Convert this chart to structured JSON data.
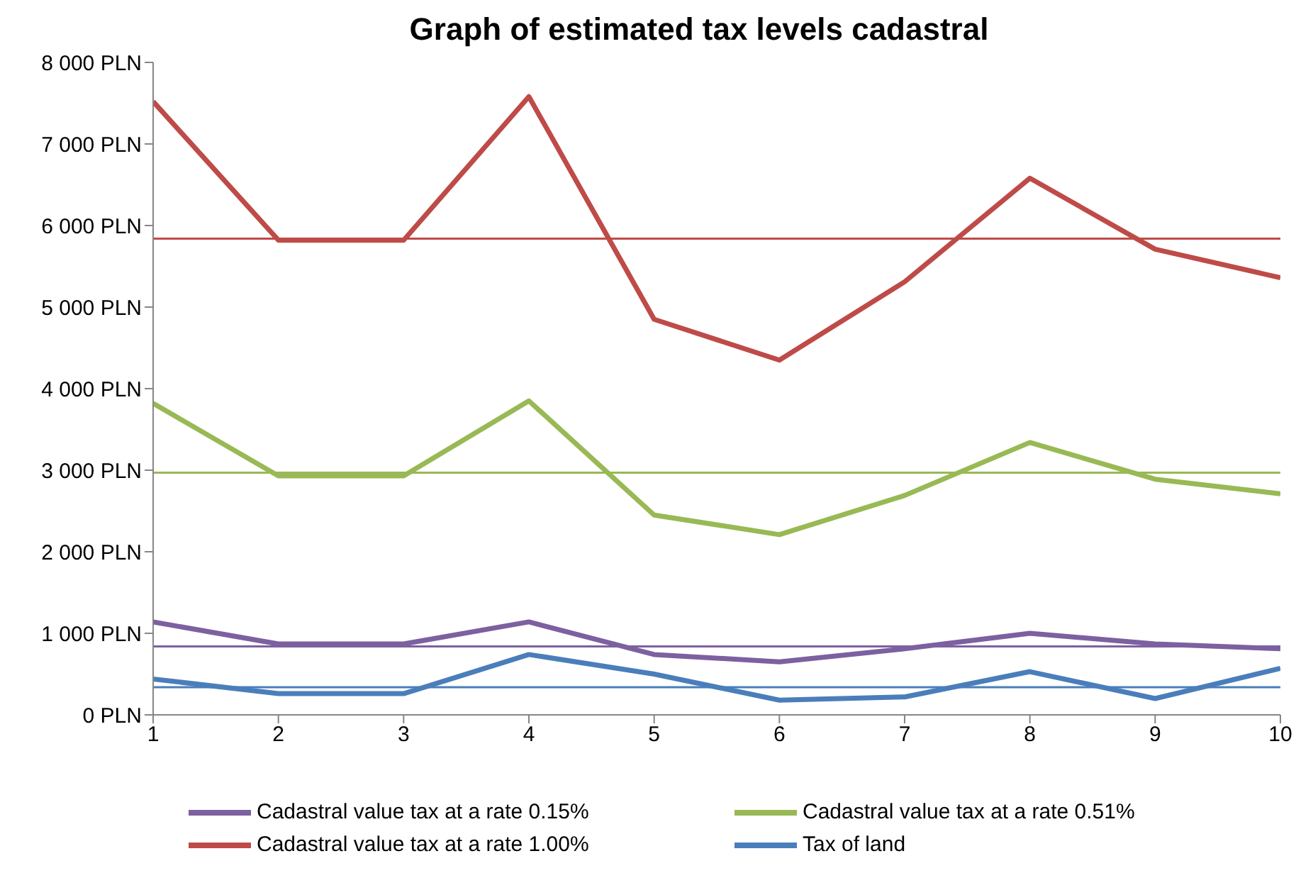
{
  "chart_data": {
    "type": "line",
    "title": "Graph of estimated tax levels cadastral",
    "x": [
      1,
      2,
      3,
      4,
      5,
      6,
      7,
      8,
      9,
      10
    ],
    "xlim": [
      1,
      10
    ],
    "xticks": [
      1,
      2,
      3,
      4,
      5,
      6,
      7,
      8,
      9,
      10
    ],
    "ylim": [
      0,
      8000
    ],
    "yticks": [
      {
        "value": 0,
        "label": "0 PLN"
      },
      {
        "value": 1000,
        "label": "1 000 PLN"
      },
      {
        "value": 2000,
        "label": "2 000 PLN"
      },
      {
        "value": 3000,
        "label": "3 000 PLN"
      },
      {
        "value": 4000,
        "label": "4 000 PLN"
      },
      {
        "value": 5000,
        "label": "5 000 PLN"
      },
      {
        "value": 6000,
        "label": "6 000 PLN"
      },
      {
        "value": 7000,
        "label": "7 000 PLN"
      },
      {
        "value": 8000,
        "label": "8 000 PLN"
      }
    ],
    "series": [
      {
        "name": "Tax of land",
        "color": "#4a7ebb",
        "values": [
          440,
          260,
          260,
          740,
          500,
          180,
          220,
          530,
          200,
          570
        ]
      },
      {
        "name": "Cadastral value tax at a rate 1.00%",
        "color": "#be4b48",
        "values": [
          7520,
          5820,
          5820,
          7580,
          4850,
          4350,
          5310,
          6580,
          5710,
          5360
        ]
      },
      {
        "name": "Cadastral value tax at a rate 0.51%",
        "color": "#98b954",
        "values": [
          3820,
          2930,
          2930,
          3850,
          2450,
          2210,
          2690,
          3340,
          2890,
          2710
        ]
      },
      {
        "name": "Cadastral value tax at a rate 0.15%",
        "color": "#7d60a0",
        "values": [
          1140,
          870,
          870,
          1140,
          740,
          650,
          810,
          1000,
          870,
          810
        ]
      }
    ],
    "ref_lines": [
      {
        "axis": "y",
        "value": 5840,
        "color": "#be4b48"
      },
      {
        "axis": "y",
        "value": 2970,
        "color": "#98b954"
      },
      {
        "axis": "y",
        "value": 840,
        "color": "#7d60a0"
      },
      {
        "axis": "y",
        "value": 340,
        "color": "#4a7ebb"
      }
    ],
    "grid": false,
    "legend": "bottom",
    "marker": "none",
    "line_style": "solid"
  }
}
